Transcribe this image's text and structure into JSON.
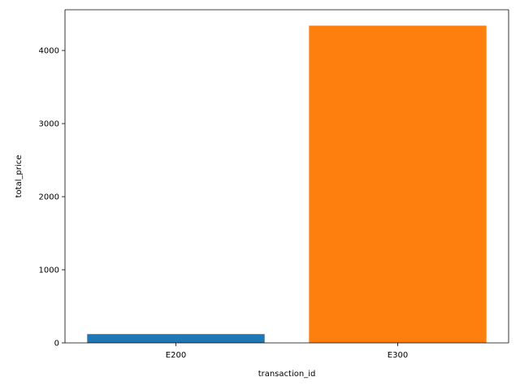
{
  "chart_data": {
    "type": "bar",
    "categories": [
      "E200",
      "E300"
    ],
    "values": [
      120,
      4340
    ],
    "colors": [
      "#1f77b4",
      "#ff7f0e"
    ],
    "title": "",
    "xlabel": "transaction_id",
    "ylabel": "total_price",
    "ylim": [
      0,
      4557
    ],
    "yticks": [
      0,
      1000,
      2000,
      3000,
      4000
    ],
    "grid": false,
    "legend": "none"
  }
}
